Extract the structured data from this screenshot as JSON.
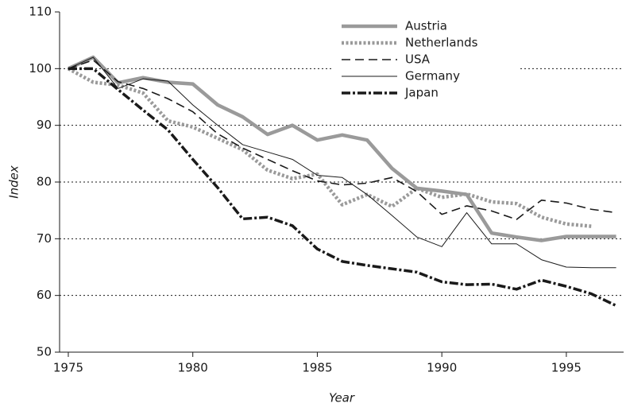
{
  "chart_data": {
    "type": "line",
    "x_label": "Year",
    "y_label": "Index",
    "x": [
      1975,
      1976,
      1977,
      1978,
      1979,
      1980,
      1981,
      1982,
      1983,
      1984,
      1985,
      1986,
      1987,
      1988,
      1989,
      1990,
      1991,
      1992,
      1993,
      1994,
      1995,
      1996,
      1997
    ],
    "series": [
      {
        "name": "Austria",
        "color": "#9a9a9a",
        "line_style": "solid",
        "values": [
          100,
          102,
          97.5,
          98.4,
          97.6,
          97.3,
          93.6,
          91.5,
          88.4,
          90,
          87.4,
          88.3,
          87.4,
          82.4,
          78.9,
          78.4,
          77.8,
          71,
          70.3,
          69.7,
          70.4,
          70.4,
          70.4
        ]
      },
      {
        "name": "Netherlands",
        "color": "#9a9a9a",
        "line_style": "dotted",
        "values": [
          100,
          97.6,
          97.1,
          95.7,
          90.8,
          89.7,
          87.7,
          85.7,
          82.1,
          80.6,
          81.4,
          76,
          77.8,
          75.7,
          78.9,
          77.3,
          77.9,
          76.5,
          76.2,
          73.8,
          72.6,
          72.2,
          null
        ]
      },
      {
        "name": "USA",
        "color": "#1a1a1a",
        "line_style": "dashed",
        "values": [
          100,
          101.5,
          97.7,
          96.5,
          94.7,
          92.4,
          88.5,
          86,
          84,
          82,
          80.2,
          79.5,
          79.8,
          80.8,
          78.3,
          74.3,
          75.8,
          74.9,
          73.4,
          76.8,
          76.3,
          75.2,
          74.6
        ]
      },
      {
        "name": "Germany",
        "color": "#1a1a1a",
        "line_style": "thin",
        "values": [
          100,
          102,
          96.5,
          98.2,
          97.8,
          93.6,
          90,
          86.6,
          85.3,
          84,
          81.2,
          80.8,
          77.8,
          74.1,
          70.3,
          68.6,
          74.6,
          69.1,
          69.1,
          66.3,
          65,
          64.9,
          64.9
        ]
      },
      {
        "name": "Japan",
        "color": "#1a1a1a",
        "line_style": "dashdot",
        "values": [
          100,
          100,
          96.3,
          92.7,
          89.2,
          84,
          79,
          73.5,
          73.8,
          72.3,
          68.2,
          66,
          65.3,
          64.7,
          64.1,
          62.4,
          61.9,
          62,
          61.1,
          62.7,
          61.6,
          60.3,
          58.2
        ]
      }
    ],
    "xlim": [
      1974.65,
      1997.3
    ],
    "xticks": [
      1975,
      1980,
      1985,
      1990,
      1995
    ],
    "ylim": [
      50,
      110
    ],
    "yticks": [
      50,
      60,
      70,
      80,
      90,
      100,
      110
    ],
    "grid": true,
    "legend_position": "upper right"
  }
}
